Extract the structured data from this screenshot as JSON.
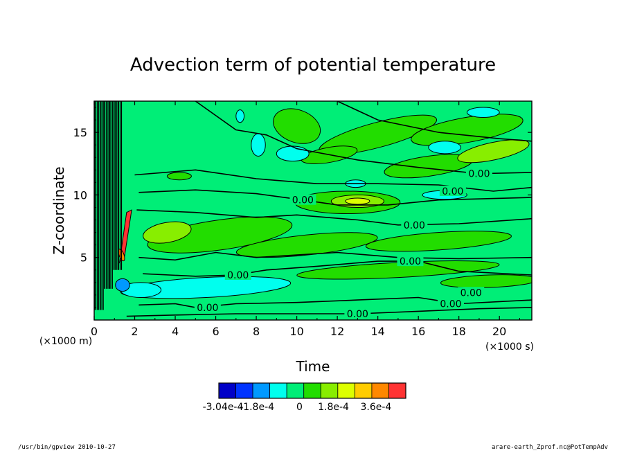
{
  "chart_data": {
    "type": "heatmap",
    "title": "Advection term of potential temperature",
    "xlabel": "Time",
    "ylabel": "Z-coordinate",
    "x_unit": "(×1000 s)",
    "y_unit": "(×1000 m)",
    "xlim": [
      0,
      21.6
    ],
    "ylim": [
      0,
      17.5
    ],
    "x_ticks": [
      0,
      2,
      4,
      6,
      8,
      10,
      12,
      14,
      16,
      18,
      20
    ],
    "y_ticks": [
      5,
      10,
      15
    ],
    "contour_labels": [
      {
        "text": "0.00",
        "x": 19.0,
        "y": 11.7
      },
      {
        "text": "0.00",
        "x": 17.7,
        "y": 10.3
      },
      {
        "text": "0.00",
        "x": 10.3,
        "y": 9.6
      },
      {
        "text": "0.00",
        "x": 15.8,
        "y": 7.6
      },
      {
        "text": "0.00",
        "x": 15.6,
        "y": 4.7
      },
      {
        "text": "0.00",
        "x": 7.1,
        "y": 3.6
      },
      {
        "text": "0.00",
        "x": 18.6,
        "y": 2.2
      },
      {
        "text": "0.00",
        "x": 17.6,
        "y": 1.3
      },
      {
        "text": "0.00",
        "x": 5.6,
        "y": 1.0
      },
      {
        "text": "0.00",
        "x": 13.0,
        "y": 0.5
      }
    ],
    "colorbar": {
      "colors": [
        "#0000c8",
        "#0033ff",
        "#0099ff",
        "#00ffee",
        "#00ee77",
        "#22dd00",
        "#88ee00",
        "#ddff00",
        "#ffcc00",
        "#ff8800",
        "#ff3333"
      ],
      "tick_labels": [
        "-3.04e-4",
        "-1.8e-4",
        "0",
        "1.8e-4",
        "3.6e-4"
      ]
    }
  },
  "footer": {
    "left": "/usr/bin/gpview   2010-10-27",
    "right": "arare-earth_Zprof.nc@PotTempAdv"
  }
}
